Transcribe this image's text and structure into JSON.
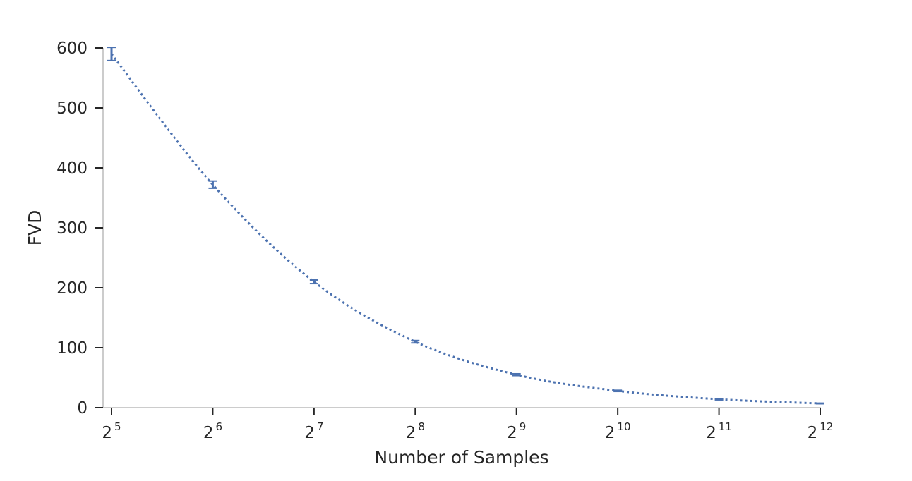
{
  "chart_data": {
    "type": "line",
    "title": "",
    "xlabel": "Number of Samples",
    "ylabel": "FVD",
    "x_scale": "log2",
    "x": [
      32,
      64,
      128,
      256,
      512,
      1024,
      2048,
      4096
    ],
    "x_tick_labels": [
      {
        "base": "2",
        "exp": "5"
      },
      {
        "base": "2",
        "exp": "6"
      },
      {
        "base": "2",
        "exp": "7"
      },
      {
        "base": "2",
        "exp": "8"
      },
      {
        "base": "2",
        "exp": "9"
      },
      {
        "base": "2",
        "exp": "10"
      },
      {
        "base": "2",
        "exp": "11"
      },
      {
        "base": "2",
        "exp": "12"
      }
    ],
    "y_ticks": [
      "0",
      "100",
      "200",
      "300",
      "400",
      "500",
      "600"
    ],
    "ylim": [
      0,
      600
    ],
    "grid": false,
    "series": [
      {
        "color": "#4c72b0",
        "line_style": "dotted",
        "values": [
          590,
          372,
          210,
          110,
          55,
          28,
          14,
          7
        ],
        "error": [
          11,
          6,
          3,
          2,
          1.5,
          1,
          1,
          0.5
        ]
      }
    ]
  }
}
